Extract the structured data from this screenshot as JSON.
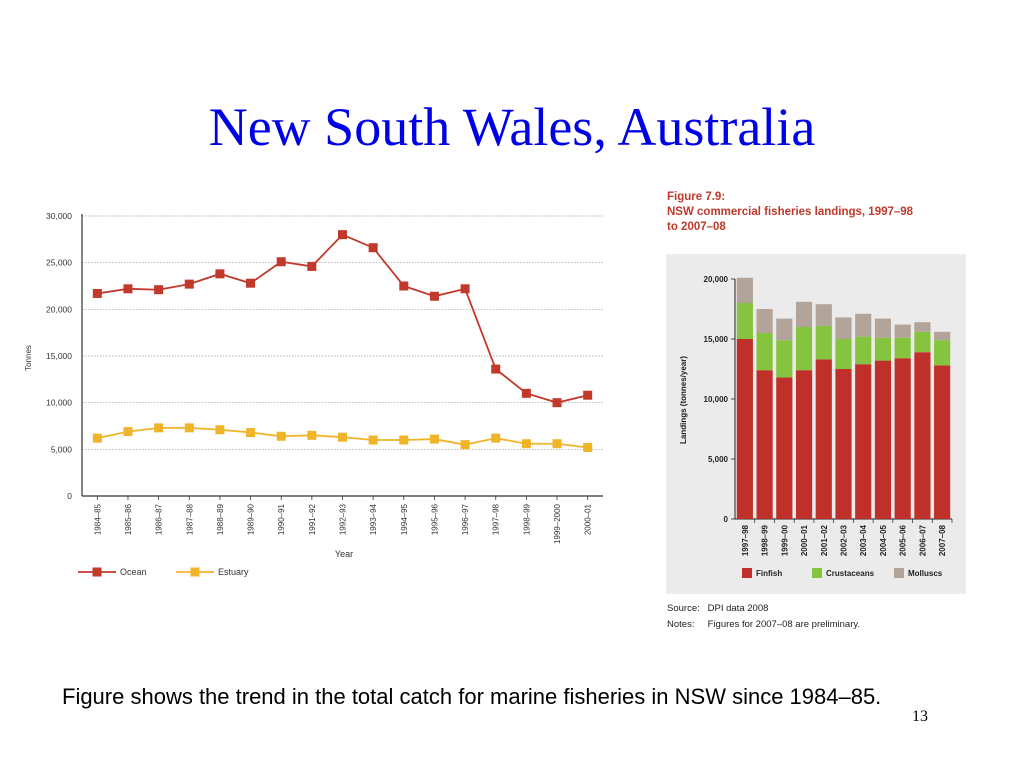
{
  "slide": {
    "title": "New South Wales, Australia",
    "caption": "Figure shows the trend in the total catch for marine fisheries in NSW since 1984–85.",
    "number": "13"
  },
  "chart_data": [
    {
      "type": "line",
      "title": "",
      "xlabel": "Year",
      "ylabel": "Tonnes",
      "ylim": [
        0,
        30000
      ],
      "yticks": [
        0,
        5000,
        10000,
        15000,
        20000,
        25000,
        30000
      ],
      "ytick_labels": [
        "0",
        "5,000",
        "10,000",
        "15,000",
        "20,000",
        "25,000",
        "30,000"
      ],
      "grid": true,
      "legend": "bottom-left",
      "categories": [
        "1984–85",
        "1985–86",
        "1986–87",
        "1987–88",
        "1988–89",
        "1989–90",
        "1990–91",
        "1991–92",
        "1992–93",
        "1993–94",
        "1994–95",
        "1995–96",
        "1996–97",
        "1997–98",
        "1998–99",
        "1999–2000",
        "2000–01"
      ],
      "series": [
        {
          "name": "Ocean",
          "color": "#c0392b",
          "values": [
            21700,
            22200,
            22100,
            22700,
            23800,
            22800,
            25100,
            24600,
            28000,
            26600,
            22500,
            21400,
            22200,
            13600,
            11000,
            10000,
            10800
          ]
        },
        {
          "name": "Estuary",
          "color": "#f0b429",
          "values": [
            6200,
            6900,
            7300,
            7300,
            7100,
            6800,
            6400,
            6500,
            6300,
            6000,
            6000,
            6100,
            5500,
            6200,
            5600,
            5600,
            5200
          ]
        }
      ]
    },
    {
      "type": "bar",
      "stacked": true,
      "title": "Figure 7.9:\nNSW commercial fisheries landings, 1997–98 to 2007–08",
      "title_lines": [
        "Figure 7.9:",
        "NSW commercial fisheries landings, 1997–98",
        "to 2007–08"
      ],
      "xlabel": "",
      "ylabel": "Landings (tonnes/year)",
      "ylim": [
        0,
        20000
      ],
      "yticks": [
        0,
        5000,
        10000,
        15000,
        20000
      ],
      "ytick_labels": [
        "0",
        "5,000",
        "10,000",
        "15,000",
        "20,000"
      ],
      "legend": "bottom",
      "categories": [
        "1997–98",
        "1998–99",
        "1999–00",
        "2000–01",
        "2001–02",
        "2002–03",
        "2003–04",
        "2004–05",
        "2005–06",
        "2006–07",
        "2007–08"
      ],
      "series": [
        {
          "name": "Finfish",
          "color": "#c0302a",
          "values": [
            15000,
            12400,
            11800,
            12400,
            13300,
            12500,
            12900,
            13200,
            13400,
            13900,
            12800
          ]
        },
        {
          "name": "Crustaceans",
          "color": "#86c440",
          "values": [
            3000,
            3100,
            3100,
            3600,
            2800,
            2500,
            2300,
            1900,
            1700,
            1700,
            2100
          ]
        },
        {
          "name": "Molluscs",
          "color": "#b3a499",
          "values": [
            2100,
            2000,
            1800,
            2100,
            1800,
            1800,
            1900,
            1600,
            1100,
            800,
            700
          ]
        }
      ],
      "source_label": "Source:",
      "source_text": "DPI data 2008",
      "notes_label": "Notes:",
      "notes_text": "Figures for 2007–08 are preliminary."
    }
  ]
}
